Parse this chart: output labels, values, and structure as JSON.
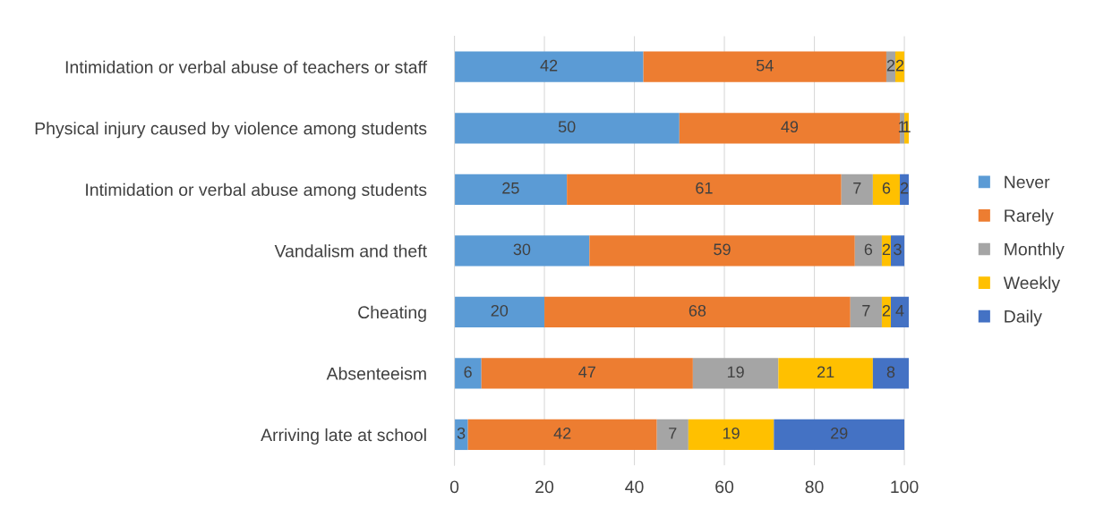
{
  "chart_data": {
    "type": "bar",
    "orientation": "horizontal",
    "stacked": true,
    "categories": [
      "Intimidation or verbal abuse of teachers or staff",
      "Physical injury caused by violence among students",
      "Intimidation or verbal abuse among students",
      "Vandalism and theft",
      "Cheating",
      "Absenteeism",
      "Arriving late at school"
    ],
    "series": [
      {
        "name": "Never",
        "color": "#5b9bd5",
        "values": [
          42,
          50,
          25,
          30,
          20,
          6,
          3
        ]
      },
      {
        "name": "Rarely",
        "color": "#ed7d31",
        "values": [
          54,
          49,
          61,
          59,
          68,
          47,
          42
        ]
      },
      {
        "name": "Monthly",
        "color": "#a5a5a5",
        "values": [
          2,
          1,
          7,
          6,
          7,
          19,
          7
        ]
      },
      {
        "name": "Weekly",
        "color": "#ffc000",
        "values": [
          2,
          1,
          6,
          2,
          2,
          21,
          19
        ]
      },
      {
        "name": "Daily",
        "color": "#4472c4",
        "values": [
          null,
          null,
          2,
          3,
          4,
          8,
          29
        ]
      }
    ],
    "xlim": [
      0,
      101
    ],
    "xticks": [
      0,
      20,
      40,
      60,
      80,
      100
    ],
    "grid": "x",
    "legend": "right",
    "data_labels": true
  }
}
